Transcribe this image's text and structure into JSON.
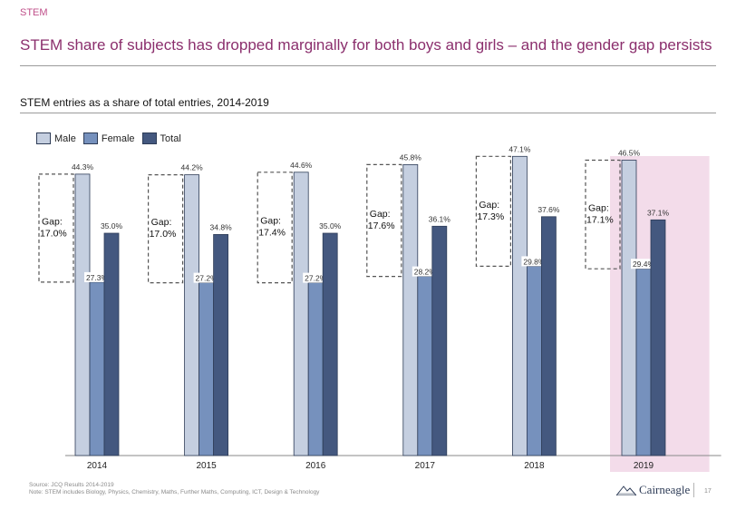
{
  "header": {
    "section": "STEM",
    "headline": "STEM share of subjects has dropped marginally for both boys and girls – and the gender gap persists"
  },
  "chart_data": {
    "type": "bar",
    "title": "STEM entries as a share of total entries, 2014-2019",
    "categories": [
      "2014",
      "2015",
      "2016",
      "2017",
      "2018",
      "2019"
    ],
    "series": [
      {
        "name": "Male",
        "color": "#c5cfe0",
        "values": [
          44.3,
          44.2,
          44.6,
          45.8,
          47.1,
          46.5
        ],
        "labels": [
          "44.3%",
          "44.2%",
          "44.6%",
          "45.8%",
          "47.1%",
          "46.5%"
        ]
      },
      {
        "name": "Female",
        "color": "#7691bd",
        "values": [
          27.3,
          27.2,
          27.2,
          28.2,
          29.8,
          29.4
        ],
        "labels": [
          "27.3%",
          "27.2%",
          "27.2%",
          "28.2%",
          "29.8%",
          "29.4%"
        ]
      },
      {
        "name": "Total",
        "color": "#44587f",
        "values": [
          35.0,
          34.8,
          35.0,
          36.1,
          37.6,
          37.1
        ],
        "labels": [
          "35.0%",
          "34.8%",
          "35.0%",
          "36.1%",
          "37.6%",
          "37.1%"
        ]
      }
    ],
    "gap_labels": [
      "Gap: 17.0%",
      "Gap: 17.0%",
      "Gap: 17.4%",
      "Gap: 17.6%",
      "Gap: 17.3%",
      "Gap: 17.1%"
    ],
    "highlight_category": "2019",
    "highlight_color": "#f3dcea",
    "ylim": [
      0,
      50
    ],
    "legend_position": "top-left",
    "grid": false,
    "xlabel": "",
    "ylabel": ""
  },
  "footer": {
    "source": "Source: JCQ Results 2014-2019",
    "note": "Note: STEM includes Biology, Physics, Chemistry, Maths, Further Maths, Computing, ICT, Design & Technology",
    "logo": "Cairneagle",
    "page": "17"
  }
}
